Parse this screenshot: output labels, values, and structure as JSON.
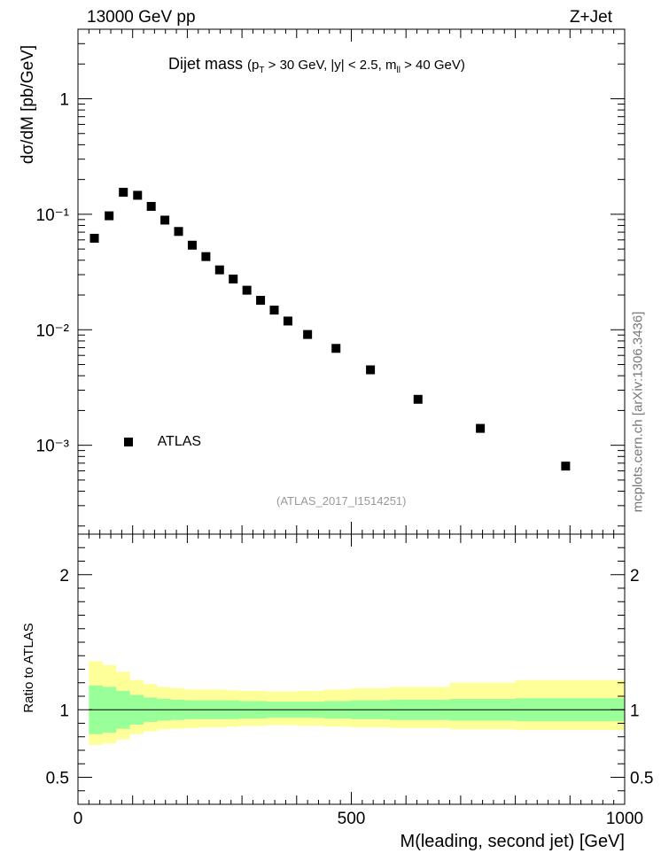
{
  "header": {
    "left": "13000 GeV pp",
    "right": "Z+Jet"
  },
  "title": {
    "main": "Dijet mass",
    "cuts": "(p",
    "cuts_sub_T": "T",
    "cuts_mid": " > 30 GeV, |y| < 2.5, m",
    "cuts_sub_ll": "ll",
    "cuts_end": " > 40 GeV)"
  },
  "legend": {
    "label": "ATLAS"
  },
  "analysis_ref": "(ATLAS_2017_I1514251)",
  "side_label": "mcplots.cern.ch [arXiv:1306.3436]",
  "colors": {
    "inner_band": "#99ff99",
    "outer_band": "#ffff99",
    "markers": "#000000"
  },
  "chart_data": [
    {
      "type": "scatter",
      "panel": "main",
      "ylabel": "dσ/dM [pb/GeV]",
      "yscale": "log",
      "xlim": [
        0,
        1000
      ],
      "ylim": [
        0.00017,
        4
      ],
      "y_tick_labels": [
        "10⁻³",
        "10⁻²",
        "10⁻¹",
        "1"
      ],
      "series": [
        {
          "name": "ATLAS",
          "x": [
            30,
            57,
            83,
            109,
            134,
            159,
            184,
            209,
            234,
            259,
            284,
            309,
            334,
            359,
            384,
            420,
            472,
            535,
            622,
            736,
            892
          ],
          "y": [
            0.062,
            0.097,
            0.155,
            0.146,
            0.117,
            0.089,
            0.071,
            0.054,
            0.043,
            0.033,
            0.0275,
            0.022,
            0.018,
            0.0148,
            0.0119,
            0.0091,
            0.0069,
            0.0045,
            0.0025,
            0.0014,
            0.00066
          ]
        }
      ]
    },
    {
      "type": "area",
      "panel": "ratio",
      "ylabel": "Ratio to ATLAS",
      "xlabel": "M(leading, second jet) [GeV]",
      "xlim": [
        0,
        1000
      ],
      "ylim": [
        0.3,
        2.3
      ],
      "x_tick_labels": [
        "0",
        "500",
        "1000"
      ],
      "y_tick_labels": [
        "0.5",
        "1",
        "2"
      ],
      "bins": [
        20,
        45,
        70,
        95,
        120,
        145,
        170,
        195,
        220,
        245,
        270,
        295,
        320,
        345,
        370,
        400,
        450,
        500,
        570,
        680,
        800,
        1000
      ],
      "reference_line": 1,
      "series": [
        {
          "name": "inner",
          "low": [
            0.82,
            0.83,
            0.86,
            0.89,
            0.91,
            0.92,
            0.925,
            0.93,
            0.93,
            0.93,
            0.93,
            0.935,
            0.935,
            0.94,
            0.94,
            0.94,
            0.935,
            0.93,
            0.925,
            0.92,
            0.915
          ],
          "high": [
            1.18,
            1.17,
            1.14,
            1.11,
            1.09,
            1.08,
            1.075,
            1.07,
            1.07,
            1.07,
            1.07,
            1.065,
            1.065,
            1.06,
            1.06,
            1.06,
            1.065,
            1.07,
            1.075,
            1.08,
            1.085
          ]
        },
        {
          "name": "outer",
          "low": [
            0.74,
            0.75,
            0.78,
            0.82,
            0.84,
            0.855,
            0.86,
            0.865,
            0.87,
            0.87,
            0.875,
            0.88,
            0.88,
            0.885,
            0.885,
            0.88,
            0.875,
            0.87,
            0.865,
            0.855,
            0.85
          ],
          "high": [
            1.36,
            1.33,
            1.28,
            1.22,
            1.19,
            1.17,
            1.16,
            1.15,
            1.15,
            1.15,
            1.145,
            1.14,
            1.14,
            1.135,
            1.135,
            1.14,
            1.15,
            1.16,
            1.17,
            1.2,
            1.22
          ]
        }
      ]
    }
  ]
}
